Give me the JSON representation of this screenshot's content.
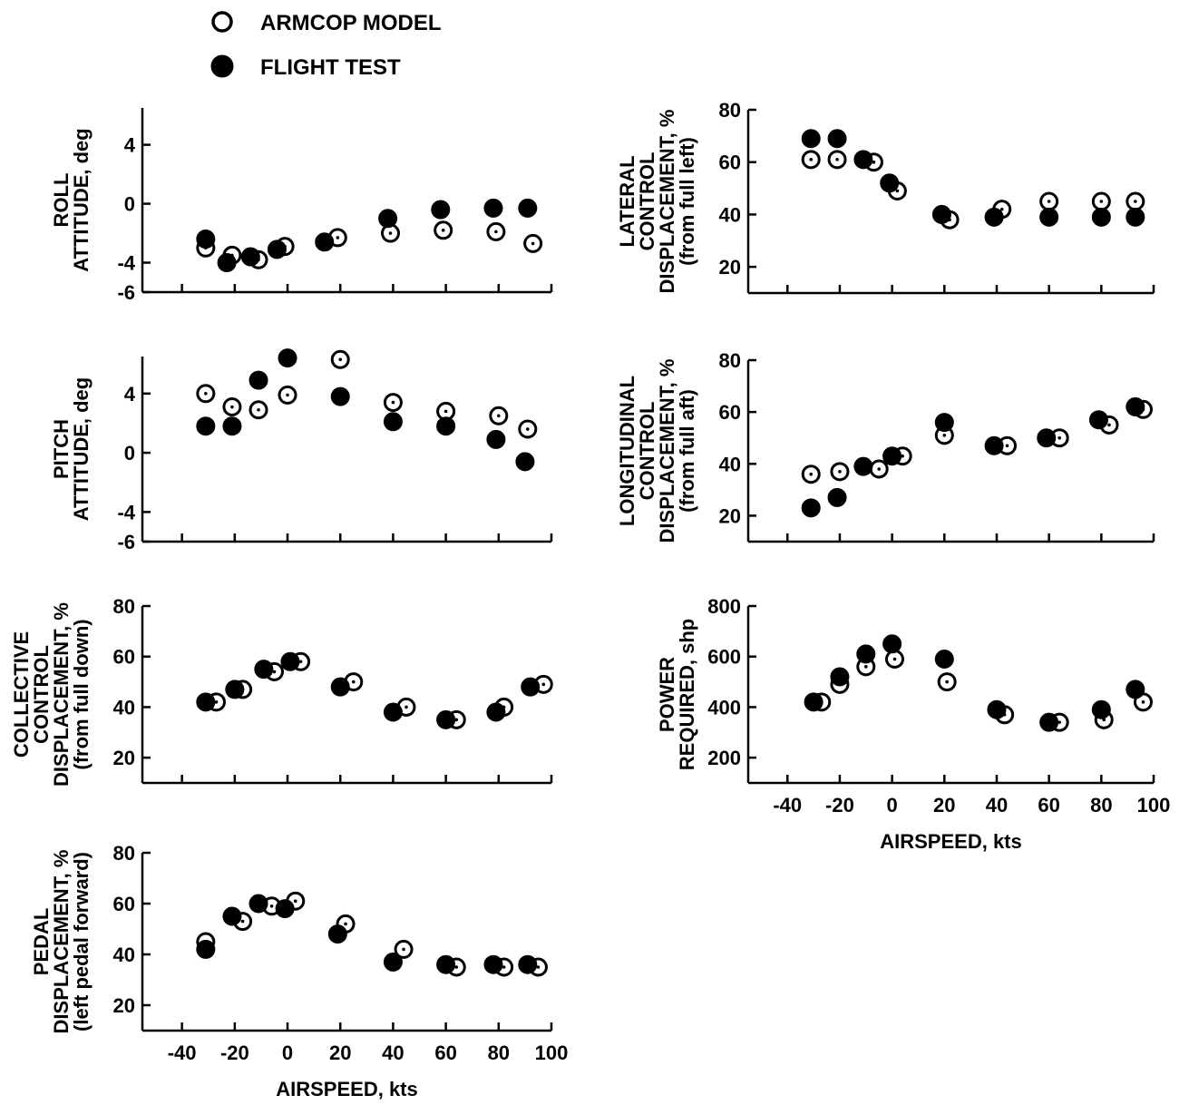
{
  "legend": [
    {
      "label": "ARMCOP MODEL",
      "marker": "open-circle-dot"
    },
    {
      "label": "FLIGHT TEST",
      "marker": "filled-circle"
    }
  ],
  "colors": {
    "ink": "#000000",
    "background": "#ffffff"
  },
  "chart_data": [
    {
      "id": "roll",
      "type": "scatter",
      "ylabel_lines": [
        "ROLL",
        "ATTITUDE, deg"
      ],
      "xlim": [
        -55,
        100
      ],
      "ylim": [
        -6,
        6.5
      ],
      "yticks": [
        -6,
        -4,
        0,
        4
      ],
      "xticks": [
        -40,
        -20,
        0,
        20,
        40,
        60,
        80,
        100
      ],
      "show_xtick_labels": false,
      "xlabel": "",
      "series": [
        {
          "name": "ARMCOP MODEL",
          "marker": "open",
          "x": [
            -31,
            -21,
            -11,
            -1,
            19,
            39,
            59,
            79,
            93
          ],
          "y": [
            -3.0,
            -3.5,
            -3.8,
            -2.9,
            -2.3,
            -2.0,
            -1.8,
            -1.9,
            -2.7
          ]
        },
        {
          "name": "FLIGHT TEST",
          "marker": "filled",
          "x": [
            -31,
            -23,
            -14,
            -4,
            14,
            38,
            58,
            78,
            91
          ],
          "y": [
            -2.4,
            -4.0,
            -3.6,
            -3.1,
            -2.6,
            -1.0,
            -0.4,
            -0.3,
            -0.3
          ]
        }
      ]
    },
    {
      "id": "pitch",
      "type": "scatter",
      "ylabel_lines": [
        "PITCH",
        "ATTITUDE, deg"
      ],
      "xlim": [
        -55,
        100
      ],
      "ylim": [
        -6,
        6.5
      ],
      "yticks": [
        -6,
        -4,
        0,
        4
      ],
      "xticks": [
        -40,
        -20,
        0,
        20,
        40,
        60,
        80,
        100
      ],
      "show_xtick_labels": false,
      "xlabel": "",
      "series": [
        {
          "name": "ARMCOP MODEL",
          "marker": "open",
          "x": [
            -31,
            -21,
            -11,
            0,
            20,
            40,
            60,
            80,
            91
          ],
          "y": [
            4.0,
            3.1,
            2.9,
            3.9,
            6.3,
            3.4,
            2.8,
            2.5,
            1.6
          ]
        },
        {
          "name": "FLIGHT TEST",
          "marker": "filled",
          "x": [
            -31,
            -21,
            -11,
            0,
            20,
            40,
            60,
            79,
            90
          ],
          "y": [
            1.8,
            1.8,
            4.9,
            6.4,
            3.8,
            2.1,
            1.8,
            0.9,
            -0.6
          ]
        }
      ]
    },
    {
      "id": "collective",
      "type": "scatter",
      "ylabel_lines": [
        "COLLECTIVE",
        "CONTROL",
        "DISPLACEMENT, %",
        "(from full down)"
      ],
      "xlim": [
        -55,
        100
      ],
      "ylim": [
        10,
        80
      ],
      "yticks": [
        20,
        40,
        60,
        80
      ],
      "xticks": [
        -40,
        -20,
        0,
        20,
        40,
        60,
        80,
        100
      ],
      "show_xtick_labels": false,
      "xlabel": "",
      "series": [
        {
          "name": "ARMCOP MODEL",
          "marker": "open",
          "x": [
            -27,
            -17,
            -5,
            5,
            25,
            45,
            64,
            82,
            97
          ],
          "y": [
            42,
            47,
            54,
            58,
            50,
            40,
            35,
            40,
            49
          ]
        },
        {
          "name": "FLIGHT TEST",
          "marker": "filled",
          "x": [
            -31,
            -20,
            -9,
            1,
            20,
            40,
            60,
            79,
            92
          ],
          "y": [
            42,
            47,
            55,
            58,
            48,
            38,
            35,
            38,
            48
          ]
        }
      ]
    },
    {
      "id": "pedal",
      "type": "scatter",
      "ylabel_lines": [
        "PEDAL",
        "DISPLACEMENT, %",
        "(left pedal forward)"
      ],
      "xlim": [
        -55,
        100
      ],
      "ylim": [
        10,
        80
      ],
      "yticks": [
        20,
        40,
        60,
        80
      ],
      "xticks": [
        -40,
        -20,
        0,
        20,
        40,
        60,
        80,
        100
      ],
      "show_xtick_labels": true,
      "xlabel": "AIRSPEED, kts",
      "series": [
        {
          "name": "ARMCOP MODEL",
          "marker": "open",
          "x": [
            -31,
            -17,
            -6,
            3,
            22,
            44,
            64,
            82,
            95
          ],
          "y": [
            45,
            53,
            59,
            61,
            52,
            42,
            35,
            35,
            35
          ]
        },
        {
          "name": "FLIGHT TEST",
          "marker": "filled",
          "x": [
            -31,
            -21,
            -11,
            -1,
            19,
            40,
            60,
            78,
            91
          ],
          "y": [
            42,
            55,
            60,
            58,
            48,
            37,
            36,
            36,
            36
          ]
        }
      ]
    },
    {
      "id": "lateral",
      "type": "scatter",
      "ylabel_lines": [
        "LATERAL",
        "CONTROL",
        "DISPLACEMENT, %",
        "(from full left)"
      ],
      "xlim": [
        -55,
        100
      ],
      "ylim": [
        10,
        80
      ],
      "yticks": [
        20,
        40,
        60,
        80
      ],
      "xticks": [
        -40,
        -20,
        0,
        20,
        40,
        60,
        80,
        100
      ],
      "show_xtick_labels": false,
      "xlabel": "",
      "series": [
        {
          "name": "ARMCOP MODEL",
          "marker": "open",
          "x": [
            -31,
            -21,
            -7,
            2,
            22,
            42,
            60,
            80,
            93
          ],
          "y": [
            61,
            61,
            60,
            49,
            38,
            42,
            45,
            45,
            45
          ]
        },
        {
          "name": "FLIGHT TEST",
          "marker": "filled",
          "x": [
            -31,
            -21,
            -11,
            -1,
            19,
            39,
            60,
            80,
            93
          ],
          "y": [
            69,
            69,
            61,
            52,
            40,
            39,
            39,
            39,
            39
          ]
        }
      ]
    },
    {
      "id": "longitudinal",
      "type": "scatter",
      "ylabel_lines": [
        "LONGITUDINAL",
        "CONTROL",
        "DISPLACEMENT, %",
        "(from full aft)"
      ],
      "xlim": [
        -55,
        100
      ],
      "ylim": [
        10,
        80
      ],
      "yticks": [
        20,
        40,
        60,
        80
      ],
      "xticks": [
        -40,
        -20,
        0,
        20,
        40,
        60,
        80,
        100
      ],
      "show_xtick_labels": false,
      "xlabel": "",
      "series": [
        {
          "name": "ARMCOP MODEL",
          "marker": "open",
          "x": [
            -31,
            -20,
            -5,
            4,
            20,
            44,
            64,
            83,
            96
          ],
          "y": [
            36,
            37,
            38,
            43,
            51,
            47,
            50,
            55,
            61
          ]
        },
        {
          "name": "FLIGHT TEST",
          "marker": "filled",
          "x": [
            -31,
            -21,
            -11,
            0,
            20,
            39,
            59,
            79,
            93
          ],
          "y": [
            23,
            27,
            39,
            43,
            56,
            47,
            50,
            57,
            62
          ]
        }
      ]
    },
    {
      "id": "power",
      "type": "scatter",
      "ylabel_lines": [
        "POWER",
        "REQUIRED, shp"
      ],
      "xlim": [
        -55,
        100
      ],
      "ylim": [
        100,
        800
      ],
      "yticks": [
        200,
        400,
        600,
        800
      ],
      "xticks": [
        -40,
        -20,
        0,
        20,
        40,
        60,
        80,
        100
      ],
      "show_xtick_labels": true,
      "xlabel": "AIRSPEED, kts",
      "series": [
        {
          "name": "ARMCOP MODEL",
          "marker": "open",
          "x": [
            -27,
            -20,
            -10,
            1,
            21,
            43,
            64,
            81,
            96
          ],
          "y": [
            420,
            490,
            560,
            590,
            500,
            370,
            340,
            350,
            420
          ]
        },
        {
          "name": "FLIGHT TEST",
          "marker": "filled",
          "x": [
            -30,
            -20,
            -10,
            0,
            20,
            40,
            60,
            80,
            93
          ],
          "y": [
            420,
            520,
            610,
            650,
            590,
            390,
            340,
            390,
            470
          ]
        }
      ]
    }
  ]
}
